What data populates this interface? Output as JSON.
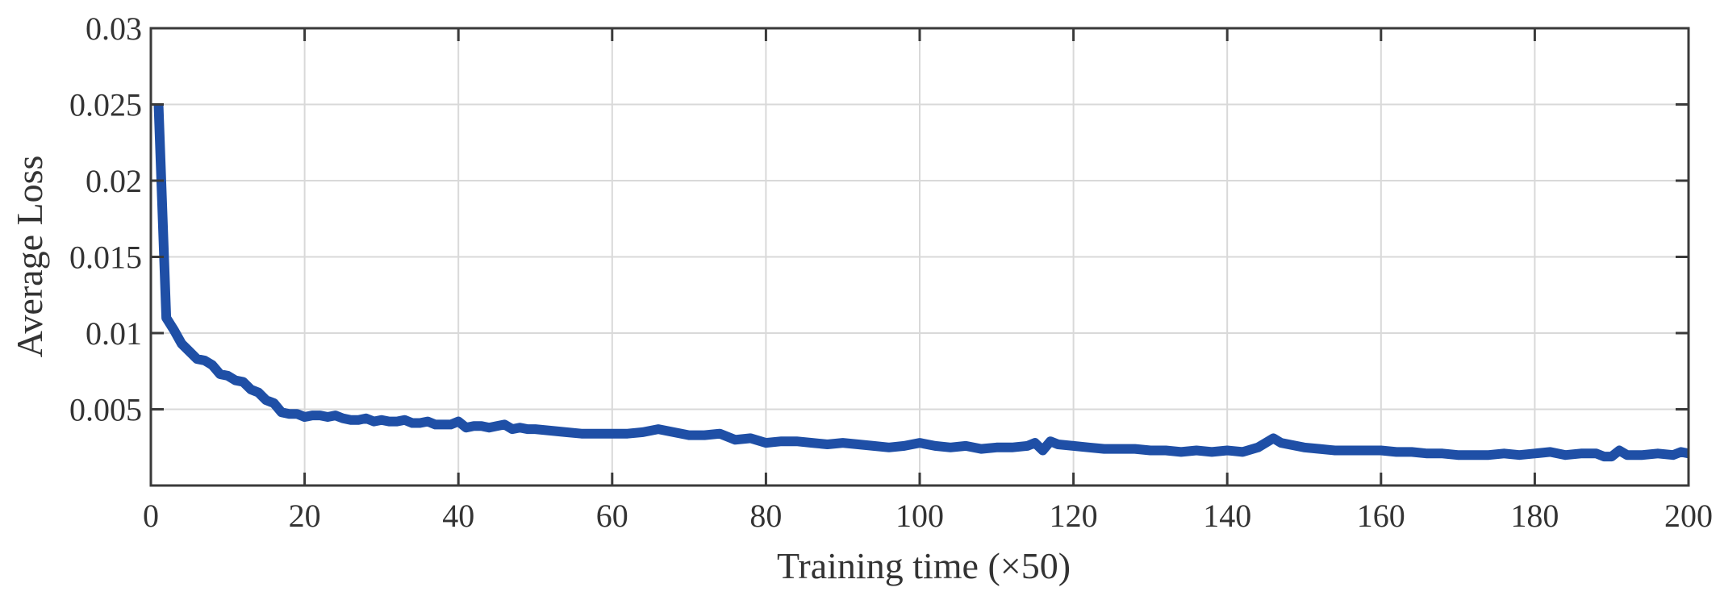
{
  "chart_data": {
    "type": "line",
    "title": "",
    "xlabel": "Training time (×50)",
    "ylabel": "Average Loss",
    "xlim": [
      0,
      200
    ],
    "ylim": [
      0,
      0.03
    ],
    "x_ticks": [
      0,
      20,
      40,
      60,
      80,
      100,
      120,
      140,
      160,
      180,
      200
    ],
    "x_tick_labels": [
      "0",
      "20",
      "40",
      "60",
      "80",
      "100",
      "120",
      "140",
      "160",
      "180",
      "200"
    ],
    "y_ticks": [
      0.005,
      0.01,
      0.015,
      0.02,
      0.025,
      0.03
    ],
    "y_tick_labels": [
      "0.005",
      "0.01",
      "0.015",
      "0.02",
      "0.025",
      "0.03"
    ],
    "grid": true,
    "line_color": "#1f4fa6",
    "series": [
      {
        "x": [
          1,
          2,
          3,
          4,
          5,
          6,
          7,
          8,
          9,
          10,
          11,
          12,
          13,
          14,
          15,
          16,
          17,
          18,
          19,
          20,
          21,
          22,
          23,
          24,
          25,
          26,
          27,
          28,
          29,
          30,
          31,
          32,
          33,
          34,
          35,
          36,
          37,
          38,
          39,
          40,
          41,
          42,
          43,
          44,
          45,
          46,
          47,
          48,
          49,
          50,
          52,
          54,
          56,
          58,
          60,
          62,
          64,
          66,
          68,
          70,
          72,
          74,
          76,
          78,
          80,
          82,
          84,
          86,
          88,
          90,
          92,
          94,
          96,
          98,
          100,
          102,
          104,
          106,
          108,
          110,
          112,
          114,
          115,
          116,
          117,
          118,
          120,
          122,
          124,
          126,
          128,
          130,
          132,
          134,
          136,
          138,
          140,
          142,
          144,
          145,
          146,
          147,
          148,
          150,
          152,
          154,
          156,
          158,
          160,
          162,
          164,
          166,
          168,
          170,
          172,
          174,
          176,
          178,
          180,
          182,
          184,
          186,
          188,
          189,
          190,
          191,
          192,
          194,
          196,
          198,
          199,
          200
        ],
        "y": [
          0.025,
          0.011,
          0.0102,
          0.0093,
          0.0088,
          0.0083,
          0.0082,
          0.0079,
          0.0073,
          0.0072,
          0.0069,
          0.0068,
          0.0063,
          0.0061,
          0.0056,
          0.0054,
          0.0048,
          0.0047,
          0.0047,
          0.0045,
          0.0046,
          0.0046,
          0.0045,
          0.0046,
          0.0044,
          0.0043,
          0.0043,
          0.0044,
          0.0042,
          0.0043,
          0.0042,
          0.0042,
          0.0043,
          0.0041,
          0.0041,
          0.0042,
          0.004,
          0.004,
          0.004,
          0.0042,
          0.0038,
          0.0039,
          0.0039,
          0.0038,
          0.0039,
          0.004,
          0.0037,
          0.0038,
          0.0037,
          0.0037,
          0.0036,
          0.0035,
          0.0034,
          0.0034,
          0.0034,
          0.0034,
          0.0035,
          0.0037,
          0.0035,
          0.0033,
          0.0033,
          0.0034,
          0.003,
          0.0031,
          0.0028,
          0.0029,
          0.0029,
          0.0028,
          0.0027,
          0.0028,
          0.0027,
          0.0026,
          0.0025,
          0.0026,
          0.0028,
          0.0026,
          0.0025,
          0.0026,
          0.0024,
          0.0025,
          0.0025,
          0.0026,
          0.0028,
          0.0023,
          0.0029,
          0.0027,
          0.0026,
          0.0025,
          0.0024,
          0.0024,
          0.0024,
          0.0023,
          0.0023,
          0.0022,
          0.0023,
          0.0022,
          0.0023,
          0.0022,
          0.0025,
          0.0028,
          0.0031,
          0.0028,
          0.0027,
          0.0025,
          0.0024,
          0.0023,
          0.0023,
          0.0023,
          0.0023,
          0.0022,
          0.0022,
          0.0021,
          0.0021,
          0.002,
          0.002,
          0.002,
          0.0021,
          0.002,
          0.0021,
          0.0022,
          0.002,
          0.0021,
          0.0021,
          0.0019,
          0.0019,
          0.0023,
          0.002,
          0.002,
          0.0021,
          0.002,
          0.0022,
          0.0021
        ]
      }
    ]
  }
}
